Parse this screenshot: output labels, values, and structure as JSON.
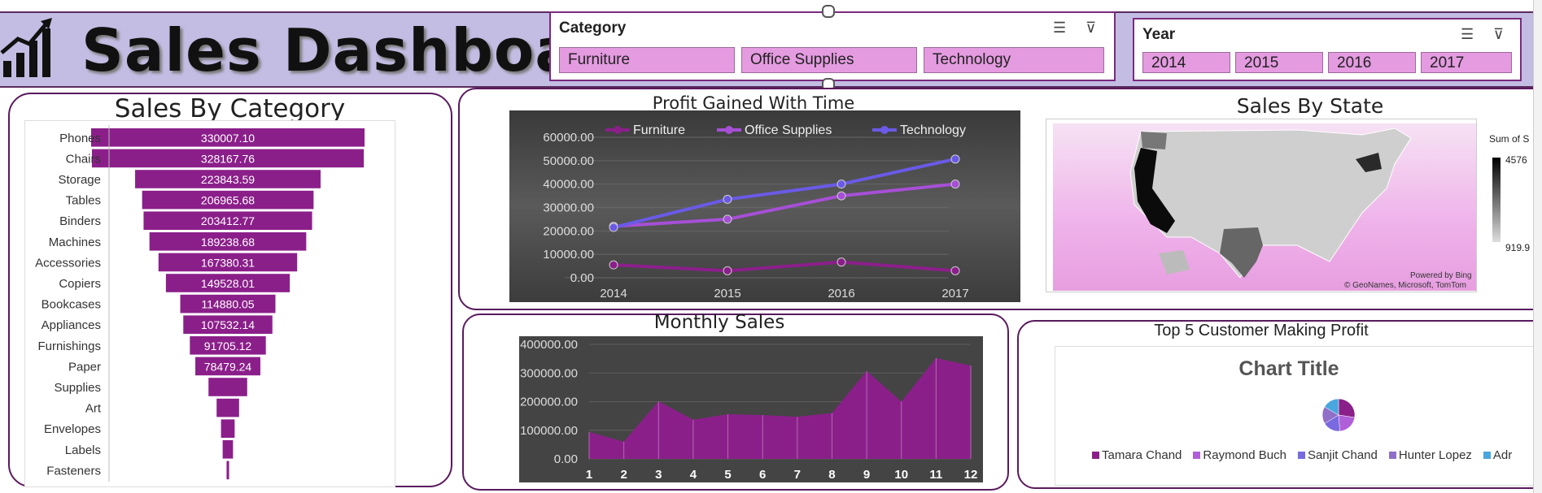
{
  "header": {
    "title": "Sales Dashboard",
    "category_slicer": {
      "title": "Category",
      "items": [
        "Furniture",
        "Office Supplies",
        "Technology"
      ]
    },
    "year_slicer": {
      "title": "Year",
      "items": [
        "2014",
        "2015",
        "2016",
        "2017"
      ]
    }
  },
  "colors": {
    "accent": "#8b1f8a",
    "header_bg": "#c3bde3",
    "slicer_item": "#e49be0",
    "chart_bg": "#444444"
  },
  "chart_data": [
    {
      "type": "bar",
      "title": "Sales By Category",
      "orientation": "horizontal-funnel",
      "categories": [
        "Phones",
        "Chairs",
        "Storage",
        "Tables",
        "Binders",
        "Machines",
        "Accessories",
        "Copiers",
        "Bookcases",
        "Appliances",
        "Furnishings",
        "Paper",
        "Supplies",
        "Art",
        "Envelopes",
        "Labels",
        "Fasteners"
      ],
      "values": [
        330007.1,
        328167.76,
        223843.59,
        206965.68,
        203412.77,
        189238.68,
        167380.31,
        149528.01,
        114880.05,
        107532.14,
        91705.12,
        78479.24,
        46673.54,
        27118.79,
        16476.4,
        12486.31,
        3024.28
      ],
      "data_labels": [
        "330007.10",
        "328167.76",
        "223843.59",
        "206965.68",
        "203412.77",
        "189238.68",
        "167380.31",
        "149528.01",
        "114880.05",
        "107532.14",
        "91705.12",
        "78479.24",
        "",
        "",
        "",
        "",
        ""
      ]
    },
    {
      "type": "line",
      "title": "Profit Gained With Time",
      "x": [
        "2014",
        "2015",
        "2016",
        "2017"
      ],
      "y_ticks": [
        "60000.00",
        "50000.00",
        "40000.00",
        "30000.00",
        "20000.00",
        "10000.00",
        "0.00"
      ],
      "ylim": [
        0,
        60000
      ],
      "legend": "top",
      "series": [
        {
          "name": "Furniture",
          "color": "#8b1f8a",
          "values": [
            5500,
            3000,
            6700,
            3000
          ]
        },
        {
          "name": "Office Supplies",
          "color": "#a64fd6",
          "values": [
            22000,
            25000,
            35000,
            40000
          ]
        },
        {
          "name": "Technology",
          "color": "#6a5ae6",
          "values": [
            21500,
            33500,
            40000,
            50700
          ]
        }
      ]
    },
    {
      "type": "area",
      "title": "Monthly Sales",
      "x": [
        "1",
        "2",
        "3",
        "4",
        "5",
        "6",
        "7",
        "8",
        "9",
        "10",
        "11",
        "12"
      ],
      "y_ticks": [
        "400000.00",
        "300000.00",
        "200000.00",
        "100000.00",
        "0.00"
      ],
      "ylim": [
        0,
        400000
      ],
      "values": [
        94000,
        60000,
        201000,
        137000,
        156000,
        153000,
        147000,
        160000,
        307000,
        200000,
        352000,
        326000
      ]
    },
    {
      "type": "pie",
      "title": "Chart Title",
      "panel_title": "Top 5 Customer Making Profit",
      "series": [
        {
          "name": "Tamara Chand",
          "color": "#8b1f8a",
          "value": 8981
        },
        {
          "name": "Raymond Buch",
          "color": "#b05fd8",
          "value": 6976
        },
        {
          "name": "Sanjit Chand",
          "color": "#7a6ae0",
          "value": 5757
        },
        {
          "name": "Hunter Lopez",
          "color": "#8f6fc8",
          "value": 5622
        },
        {
          "name": "Adr",
          "color": "#4aa6de",
          "value": 5444
        }
      ]
    }
  ],
  "map": {
    "title": "Sales By State",
    "legend_title": "Sum of S",
    "legend_max": "4576",
    "legend_min": "919.9",
    "credits_line1": "Powered by Bing",
    "credits_line2": "© GeoNames, Microsoft, TomTom"
  }
}
